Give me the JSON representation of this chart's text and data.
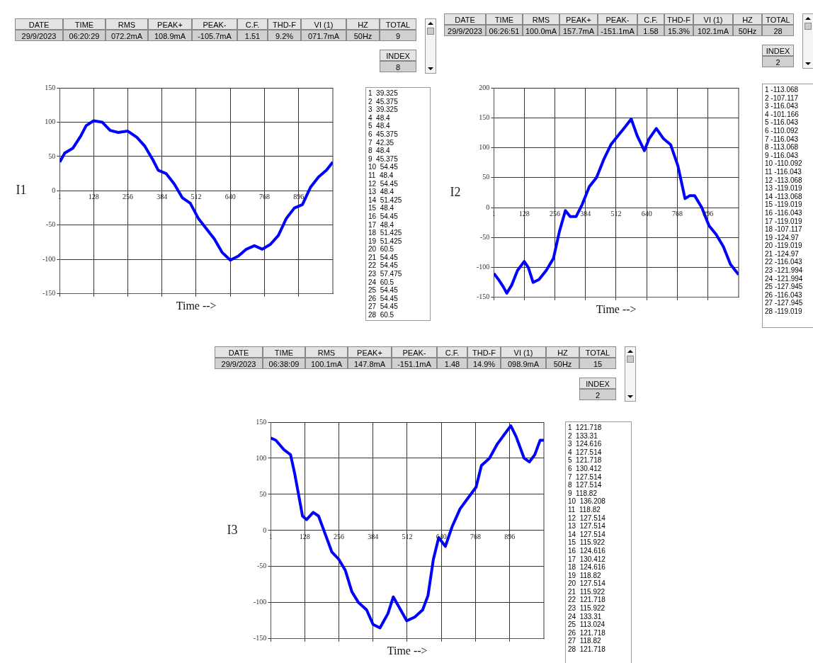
{
  "chart_data": [
    {
      "type": "other",
      "categories": [
        "DATE",
        "TIME",
        "RMS",
        "PEAK+",
        "PEAK-",
        "C.F.",
        "THD-F",
        "VI (1)",
        "HZ",
        "TOTAL",
        "INDEX"
      ],
      "annotations": [
        "29/9/2023",
        "06:20:29",
        "072.2mA",
        "108.9mA",
        "-105.7mA",
        "1.51",
        "9.2%",
        "071.7mA",
        "50Hz",
        "9",
        "8"
      ]
    },
    {
      "type": "other",
      "categories": [
        "DATE",
        "TIME",
        "RMS",
        "PEAK+",
        "PEAK-",
        "C.F.",
        "THD-F",
        "VI (1)",
        "HZ",
        "TOTAL",
        "INDEX"
      ],
      "annotations": [
        "29/9/2023",
        "06:26:51",
        "100.0mA",
        "157.7mA",
        "-151.1mA",
        "1.58",
        "15.3%",
        "102.1mA",
        "50Hz",
        "28",
        "2"
      ]
    },
    {
      "type": "line",
      "xlabel": "Time -->",
      "ylabel": "I1",
      "xlim": [
        1,
        1024
      ],
      "xticks": [
        1,
        128,
        256,
        384,
        512,
        640,
        768,
        896
      ],
      "ylim": [
        -150,
        150
      ],
      "yticks": [
        -150,
        -100,
        -50,
        0,
        50,
        100,
        150
      ],
      "grid": true,
      "x": [
        1,
        20,
        50,
        80,
        100,
        128,
        160,
        190,
        220,
        256,
        290,
        320,
        350,
        370,
        400,
        430,
        460,
        490,
        520,
        550,
        580,
        610,
        640,
        670,
        700,
        730,
        760,
        790,
        820,
        850,
        880,
        910,
        940,
        970,
        1000,
        1024
      ],
      "series": [
        {
          "color": "#0000ff",
          "values": [
            42,
            55,
            62,
            80,
            95,
            102,
            100,
            88,
            85,
            87,
            78,
            65,
            45,
            30,
            25,
            10,
            -10,
            -18,
            -40,
            -55,
            -70,
            -90,
            -101,
            -95,
            -85,
            -80,
            -85,
            -78,
            -65,
            -40,
            -25,
            -20,
            5,
            20,
            30,
            42
          ]
        }
      ]
    },
    {
      "type": "other",
      "annotations": [
        "1  39.325",
        "2  45.375",
        "3  39.325",
        "4  48.4",
        "5  48.4",
        "6  45.375",
        "7  42.35",
        "8  48.4",
        "9  45.375",
        "10  54.45",
        "11  48.4",
        "12  54.45",
        "13  48.4",
        "14  51.425",
        "15  48.4",
        "16  54.45",
        "17  48.4",
        "18  51.425",
        "19  51.425",
        "20  60.5",
        "21  54.45",
        "22  54.45",
        "23  57.475",
        "24  60.5",
        "25  54.45",
        "26  54.45",
        "27  54.45",
        "28  60.5"
      ]
    },
    {
      "type": "line",
      "xlabel": "Time -->",
      "ylabel": "I2",
      "xlim": [
        1,
        1024
      ],
      "xticks": [
        1,
        128,
        256,
        384,
        512,
        640,
        768,
        896
      ],
      "ylim": [
        -150,
        200
      ],
      "yticks": [
        -150,
        -100,
        -50,
        0,
        50,
        100,
        150,
        200
      ],
      "grid": true,
      "x": [
        1,
        20,
        40,
        55,
        75,
        100,
        128,
        145,
        165,
        190,
        220,
        250,
        275,
        300,
        320,
        345,
        370,
        400,
        430,
        460,
        490,
        520,
        550,
        575,
        600,
        630,
        650,
        680,
        710,
        740,
        770,
        800,
        820,
        840,
        870,
        900,
        930,
        960,
        990,
        1024
      ],
      "series": [
        {
          "color": "#0000ff",
          "values": [
            -110,
            -120,
            -132,
            -143,
            -130,
            -105,
            -90,
            -100,
            -125,
            -120,
            -105,
            -85,
            -40,
            -5,
            -15,
            -15,
            5,
            35,
            50,
            80,
            105,
            120,
            135,
            148,
            120,
            95,
            115,
            132,
            115,
            105,
            70,
            15,
            20,
            20,
            0,
            -30,
            -45,
            -65,
            -95,
            -112
          ]
        }
      ]
    },
    {
      "type": "other",
      "annotations": [
        "1 -113.068",
        "2 -107.117",
        "3 -116.043",
        "4 -101.166",
        "5 -116.043",
        "6 -110.092",
        "7 -116.043",
        "8 -113.068",
        "9 -116.043",
        "10 -110.092",
        "11 -116.043",
        "12 -113.068",
        "13 -119.019",
        "14 -113.068",
        "15 -119.019",
        "16 -116.043",
        "17 -119.019",
        "18 -107.117",
        "19 -124.97",
        "20 -119.019",
        "21 -124.97",
        "22 -116.043",
        "23 -121.994",
        "24 -121.994",
        "25 -127.945",
        "26 -116.043",
        "27 -127.945",
        "28 -119.019"
      ]
    },
    {
      "type": "other",
      "categories": [
        "DATE",
        "TIME",
        "RMS",
        "PEAK+",
        "PEAK-",
        "C.F.",
        "THD-F",
        "VI (1)",
        "HZ",
        "TOTAL",
        "INDEX"
      ],
      "annotations": [
        "29/9/2023",
        "06:38:09",
        "100.1mA",
        "147.8mA",
        "-151.1mA",
        "1.48",
        "14.9%",
        "098.9mA",
        "50Hz",
        "15",
        "2"
      ]
    },
    {
      "type": "line",
      "xlabel": "Time -->",
      "ylabel": "I3",
      "xlim": [
        1,
        1024
      ],
      "xticks": [
        1,
        128,
        256,
        384,
        512,
        640,
        768,
        896
      ],
      "ylim": [
        -150,
        150
      ],
      "yticks": [
        -150,
        -100,
        -50,
        0,
        50,
        100,
        150
      ],
      "grid": true,
      "x": [
        1,
        20,
        50,
        75,
        90,
        105,
        120,
        135,
        160,
        180,
        200,
        230,
        256,
        280,
        305,
        330,
        360,
        384,
        410,
        440,
        460,
        480,
        510,
        540,
        570,
        590,
        610,
        630,
        655,
        680,
        710,
        740,
        770,
        790,
        820,
        850,
        880,
        900,
        920,
        950,
        970,
        990,
        1010,
        1024
      ],
      "series": [
        {
          "color": "#0000ff",
          "values": [
            128,
            125,
            112,
            105,
            80,
            50,
            20,
            15,
            25,
            20,
            0,
            -30,
            -40,
            -55,
            -85,
            -100,
            -110,
            -130,
            -135,
            -115,
            -92,
            -105,
            -125,
            -120,
            -110,
            -90,
            -40,
            -10,
            -22,
            5,
            30,
            45,
            60,
            90,
            100,
            120,
            135,
            145,
            130,
            100,
            95,
            105,
            125,
            125
          ]
        }
      ]
    },
    {
      "type": "other",
      "annotations": [
        "1  121.718",
        "2  133.31",
        "3  124.616",
        "4  127.514",
        "5  121.718",
        "6  130.412",
        "7  127.514",
        "8  127.514",
        "9  118.82",
        "10  136.208",
        "11  118.82",
        "12  127.514",
        "13  127.514",
        "14  127.514",
        "15  115.922",
        "16  124.616",
        "17  130.412",
        "18  124.616",
        "19  118.82",
        "20  127.514",
        "21  115.922",
        "22  121.718",
        "23  115.922",
        "24  133.31",
        "25  113.024",
        "26  121.718",
        "27  118.82",
        "28  121.718"
      ]
    }
  ]
}
